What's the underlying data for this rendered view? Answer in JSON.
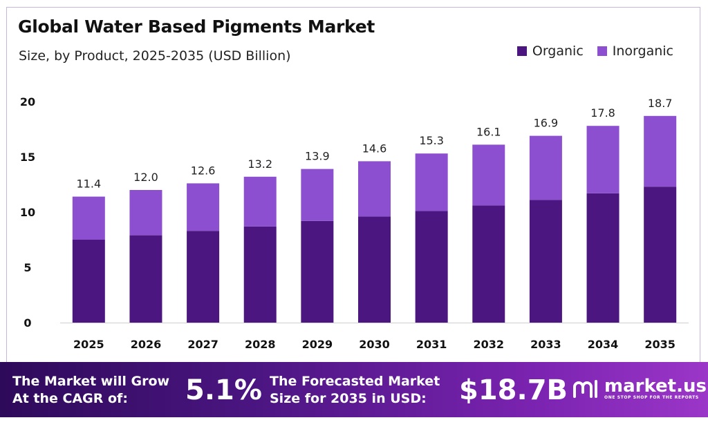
{
  "header": {
    "title": "Global Water Based Pigments Market",
    "subtitle": "Size, by Product, 2025-2035 (USD Billion)"
  },
  "colors": {
    "organic": "#4b167f",
    "inorganic": "#8c4fcf"
  },
  "legend": {
    "organic_label": "Organic",
    "inorganic_label": "Inorganic"
  },
  "chart_data": {
    "type": "bar",
    "stacked": true,
    "title": "Global Water Based Pigments Market",
    "subtitle": "Size, by Product, 2025-2035 (USD Billion)",
    "xlabel": "",
    "ylabel": "",
    "categories": [
      "2025",
      "2026",
      "2027",
      "2028",
      "2029",
      "2030",
      "2031",
      "2032",
      "2033",
      "2034",
      "2035"
    ],
    "series": [
      {
        "name": "Organic",
        "values": [
          7.5,
          7.9,
          8.3,
          8.7,
          9.2,
          9.6,
          10.1,
          10.6,
          11.1,
          11.7,
          12.3
        ]
      },
      {
        "name": "Inorganic",
        "values": [
          3.9,
          4.1,
          4.3,
          4.5,
          4.7,
          5.0,
          5.2,
          5.5,
          5.8,
          6.1,
          6.4
        ]
      }
    ],
    "totals": [
      "11.4",
      "12.0",
      "12.6",
      "13.2",
      "13.9",
      "14.6",
      "15.3",
      "16.1",
      "16.9",
      "17.8",
      "18.7"
    ],
    "yticks": [
      0,
      5,
      10,
      15,
      20
    ],
    "ylim": [
      0,
      20
    ],
    "grid": false,
    "legend_position": "top-right"
  },
  "banner": {
    "cagr_line1": "The Market will Grow",
    "cagr_line2": "At the CAGR of:",
    "cagr_value": "5.1%",
    "forecast_line1": "The Forecasted Market",
    "forecast_line2": "Size for 2035 in USD:",
    "forecast_value": "$18.7B",
    "logo_name": "market.us",
    "logo_tagline": "ONE STOP SHOP FOR THE REPORTS"
  }
}
